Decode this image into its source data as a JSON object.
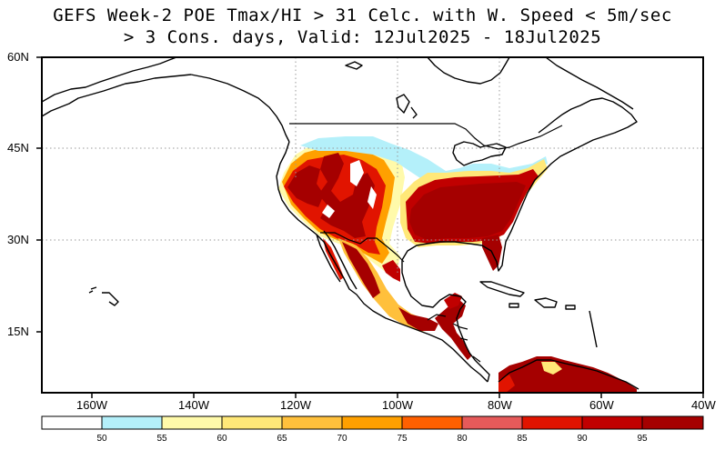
{
  "title": {
    "line1": "GEFS Week-2 POE Tmax/HI > 31 Celc. with W. Speed < 5m/sec",
    "line2": "> 3 Cons. days, Valid: 12Jul2025 - 18Jul2025"
  },
  "axes": {
    "lat_labels": [
      "60N",
      "45N",
      "30N",
      "15N"
    ],
    "lon_labels": [
      "160W",
      "140W",
      "120W",
      "100W",
      "80W",
      "60W",
      "40W"
    ]
  },
  "colorbar": {
    "tick_labels": [
      "50",
      "55",
      "60",
      "65",
      "70",
      "75",
      "80",
      "85",
      "90",
      "95"
    ],
    "colors": [
      "#ffffff",
      "#b4f0fa",
      "#fffaaa",
      "#ffe878",
      "#ffc03c",
      "#ffa000",
      "#ff6000",
      "#e65a5a",
      "#e11400",
      "#c00000",
      "#a50000"
    ]
  }
}
